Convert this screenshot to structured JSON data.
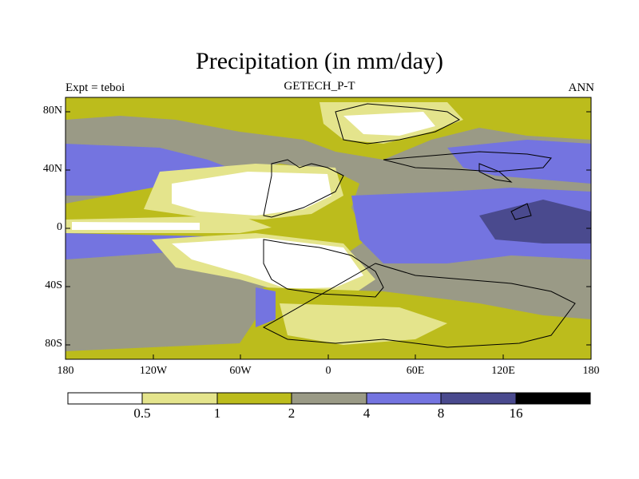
{
  "title": "Precipitation (in mm/day)",
  "subtitle_left": "Expt = teboi",
  "subtitle_center": "GETECH_P-T",
  "subtitle_right": "ANN",
  "lat_labels": [
    "80N",
    "40N",
    "0",
    "40S",
    "80S"
  ],
  "lon_labels": [
    "180",
    "120W",
    "60W",
    "0",
    "60E",
    "120E",
    "180"
  ],
  "colorbar": {
    "levels": [
      "0.5",
      "1",
      "2",
      "4",
      "8",
      "16"
    ],
    "colors": [
      "#ffffff",
      "#e4e48c",
      "#bcbc1c",
      "#9a9a86",
      "#7474e0",
      "#4a4a8e",
      "#000000"
    ]
  },
  "map_colors": {
    "very_dry": "#ffffff",
    "dry": "#e4e48c",
    "moderate": "#bcbc1c",
    "medium": "#9a9a86",
    "wet": "#7474e0",
    "very_wet": "#4a4a8e",
    "coastline": "#000000"
  }
}
